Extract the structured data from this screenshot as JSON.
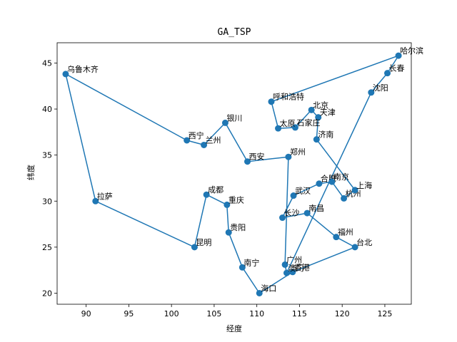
{
  "chart_data": {
    "type": "line",
    "title": "GA_TSP",
    "xlabel": "经度",
    "ylabel": "纬度",
    "xlim": [
      86.6,
      128.1
    ],
    "ylim": [
      18.8,
      47.2
    ],
    "xticks": [
      90,
      95,
      100,
      105,
      110,
      115,
      120,
      125
    ],
    "yticks": [
      20,
      25,
      30,
      35,
      40,
      45
    ],
    "grid": false,
    "marker": "circle",
    "line_color": "#1f77b4",
    "series": [
      {
        "points": [
          {
            "name": "乌鲁木齐",
            "x": 87.6,
            "y": 43.8
          },
          {
            "name": "拉萨",
            "x": 91.1,
            "y": 30.0
          },
          {
            "name": "昆明",
            "x": 102.7,
            "y": 25.0
          },
          {
            "name": "成都",
            "x": 104.1,
            "y": 30.7
          },
          {
            "name": "重庆",
            "x": 106.5,
            "y": 29.6
          },
          {
            "name": "贵阳",
            "x": 106.7,
            "y": 26.6
          },
          {
            "name": "南宁",
            "x": 108.3,
            "y": 22.8
          },
          {
            "name": "海口",
            "x": 110.3,
            "y": 20.0
          },
          {
            "name": "香港",
            "x": 114.2,
            "y": 22.3
          },
          {
            "name": "台北",
            "x": 121.5,
            "y": 25.0
          },
          {
            "name": "福州",
            "x": 119.3,
            "y": 26.1
          },
          {
            "name": "南昌",
            "x": 115.9,
            "y": 28.7
          },
          {
            "name": "长沙",
            "x": 113.0,
            "y": 28.2
          },
          {
            "name": "武汉",
            "x": 114.3,
            "y": 30.6
          },
          {
            "name": "合肥",
            "x": 117.3,
            "y": 31.9
          },
          {
            "name": "南京",
            "x": 118.8,
            "y": 32.1
          },
          {
            "name": "杭州",
            "x": 120.2,
            "y": 30.3
          },
          {
            "name": "上海",
            "x": 121.5,
            "y": 31.2
          },
          {
            "name": "济南",
            "x": 117.0,
            "y": 36.7
          },
          {
            "name": "天津",
            "x": 117.2,
            "y": 39.1
          },
          {
            "name": "北京",
            "x": 116.4,
            "y": 39.9
          },
          {
            "name": "石家庄",
            "x": 114.5,
            "y": 38.0
          },
          {
            "name": "太原",
            "x": 112.5,
            "y": 37.9
          },
          {
            "name": "呼和浩特",
            "x": 111.7,
            "y": 40.8
          },
          {
            "name": "哈尔滨",
            "x": 126.6,
            "y": 45.8
          },
          {
            "name": "长春",
            "x": 125.3,
            "y": 43.9
          },
          {
            "name": "沈阳",
            "x": 123.4,
            "y": 41.8
          },
          {
            "name": "澳门",
            "x": 113.5,
            "y": 22.2
          },
          {
            "name": "广州",
            "x": 113.3,
            "y": 23.1
          },
          {
            "name": "郑州",
            "x": 113.7,
            "y": 34.8
          },
          {
            "name": "西安",
            "x": 108.9,
            "y": 34.3
          },
          {
            "name": "银川",
            "x": 106.3,
            "y": 38.5
          },
          {
            "name": "兰州",
            "x": 103.8,
            "y": 36.1
          },
          {
            "name": "西宁",
            "x": 101.8,
            "y": 36.6
          },
          {
            "name": "乌鲁木齐",
            "x": 87.6,
            "y": 43.8
          }
        ]
      }
    ]
  }
}
